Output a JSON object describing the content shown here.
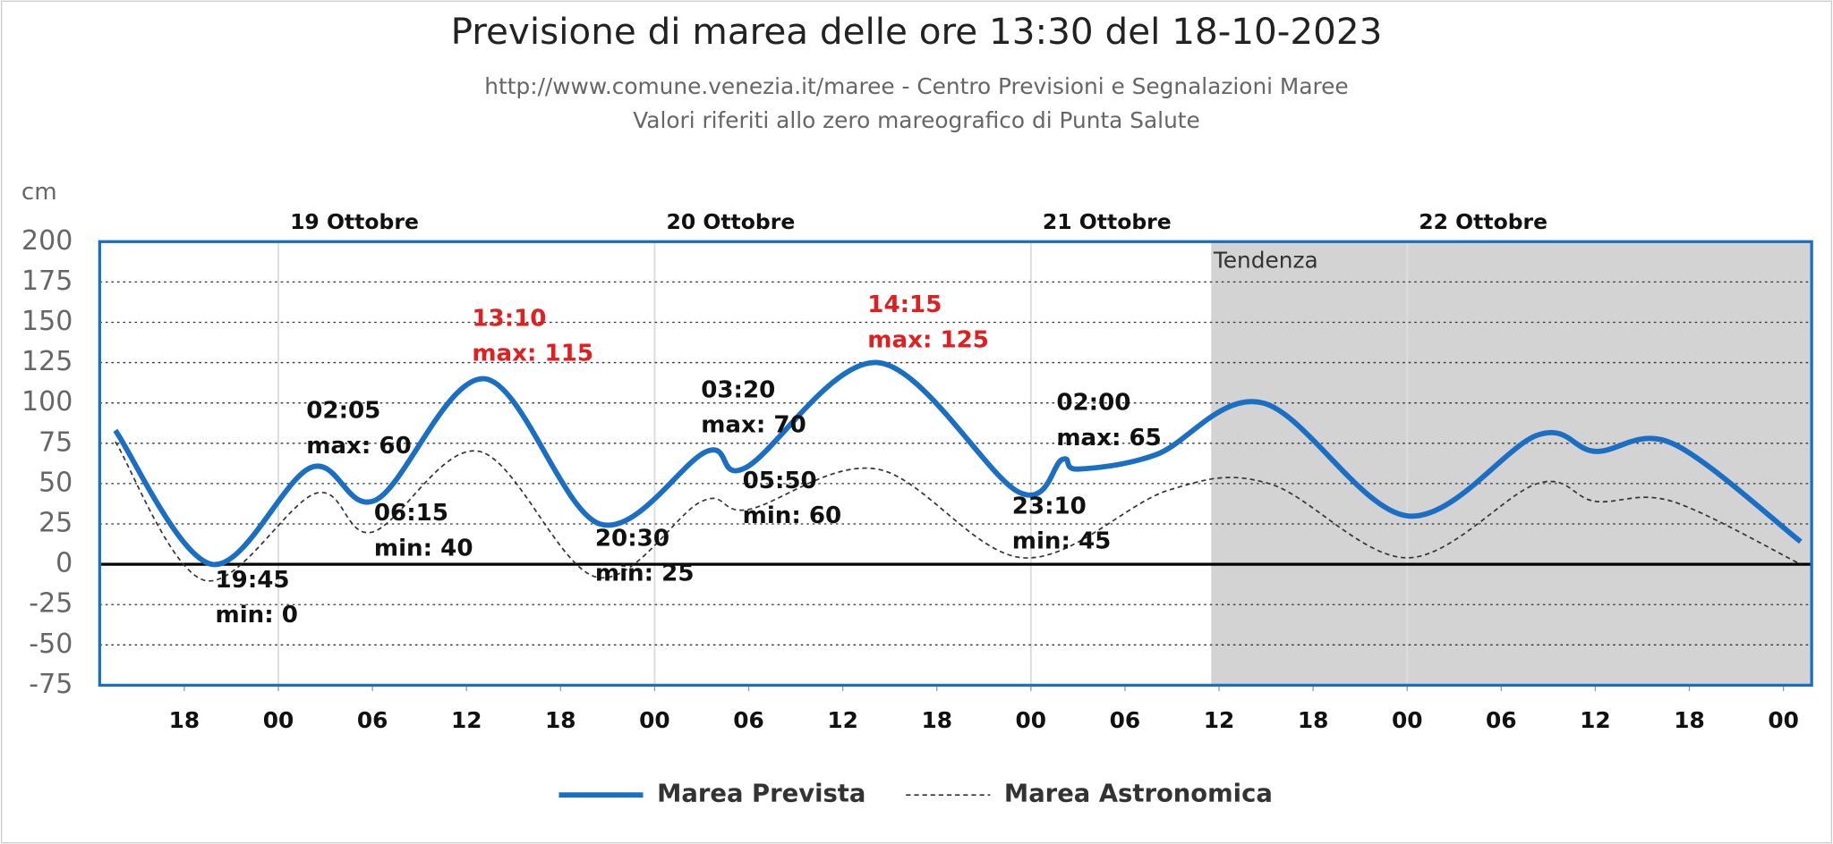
{
  "chart_data": {
    "type": "line",
    "title": "Previsione di marea delle ore 13:30 del 18-10-2023",
    "subtitle": [
      "http://www.comune.venezia.it/maree - Centro Previsioni e Segnalazioni Maree",
      "Valori riferiti allo zero mareografico di Punta Salute"
    ],
    "y_label": "cm",
    "xlim": [
      -11.4,
      97.8
    ],
    "ylim": [
      -75,
      200
    ],
    "yticks": [
      200,
      175,
      150,
      125,
      100,
      75,
      50,
      25,
      0,
      -25,
      -50,
      -75
    ],
    "xticks": [
      {
        "value": -6,
        "label": "18"
      },
      {
        "value": 0,
        "label": "00"
      },
      {
        "value": 6,
        "label": "06"
      },
      {
        "value": 12,
        "label": "12"
      },
      {
        "value": 18,
        "label": "18"
      },
      {
        "value": 24,
        "label": "00"
      },
      {
        "value": 30,
        "label": "06"
      },
      {
        "value": 36,
        "label": "12"
      },
      {
        "value": 42,
        "label": "18"
      },
      {
        "value": 48,
        "label": "00"
      },
      {
        "value": 54,
        "label": "06"
      },
      {
        "value": 60,
        "label": "12"
      },
      {
        "value": 66,
        "label": "18"
      },
      {
        "value": 72,
        "label": "00"
      },
      {
        "value": 78,
        "label": "06"
      },
      {
        "value": 84,
        "label": "12"
      },
      {
        "value": 90,
        "label": "18"
      },
      {
        "value": 96,
        "label": "00"
      }
    ],
    "day_labels": [
      {
        "value": 0,
        "label": "19 Ottobre"
      },
      {
        "value": 24,
        "label": "20 Ottobre"
      },
      {
        "value": 48,
        "label": "21 Ottobre"
      },
      {
        "value": 72,
        "label": "22 Ottobre"
      }
    ],
    "tendenza": {
      "label": "Tendenza",
      "from": 59.5
    },
    "grid": true,
    "series": [
      {
        "name": "Marea Prevista",
        "color": "#1a6fc4",
        "x": [
          -10.4,
          -4.25,
          2.08,
          6.25,
          13.17,
          20.5,
          27.33,
          29.83,
          38.25,
          47.17,
          50,
          51,
          56,
          62.8,
          72,
          80.3,
          84,
          88.9,
          97.1
        ],
        "values": [
          83,
          0,
          60,
          40,
          115,
          25,
          70,
          60,
          125,
          45,
          65,
          59,
          68,
          100,
          30,
          80,
          70,
          75,
          14
        ]
      },
      {
        "name": "Marea Astronomica",
        "color": "#333333",
        "x": [
          -10.4,
          -4.7,
          2.4,
          6,
          12.8,
          20.3,
          27,
          30,
          38.2,
          47.5,
          56.8,
          63.2,
          72,
          80.3,
          84,
          88.9,
          97.1
        ],
        "values": [
          76,
          -10,
          44,
          20,
          70,
          -8,
          39,
          34,
          59,
          4,
          46,
          50,
          4,
          50,
          39,
          39,
          0
        ]
      }
    ],
    "annotations": [
      {
        "lines": [
          "19:45",
          "min: 0"
        ],
        "x": -4.25,
        "value": 0,
        "color": "#111111"
      },
      {
        "lines": [
          "02:05",
          "max: 60"
        ],
        "x": 2.08,
        "value": 60,
        "color": "#111111"
      },
      {
        "lines": [
          "06:15",
          "min: 40"
        ],
        "x": 6.25,
        "value": 40,
        "color": "#111111"
      },
      {
        "lines": [
          "13:10",
          "max: 115"
        ],
        "x": 13.17,
        "value": 115,
        "color": "#e02020"
      },
      {
        "lines": [
          "20:30",
          "min: 25"
        ],
        "x": 20.5,
        "value": 25,
        "color": "#111111"
      },
      {
        "lines": [
          "03:20",
          "max: 70"
        ],
        "x": 27.33,
        "value": 70,
        "color": "#111111"
      },
      {
        "lines": [
          "05:50",
          "min: 60"
        ],
        "x": 29.83,
        "value": 60,
        "color": "#111111"
      },
      {
        "lines": [
          "14:15",
          "max: 125"
        ],
        "x": 38.25,
        "value": 125,
        "color": "#e02020"
      },
      {
        "lines": [
          "23:10",
          "min: 45"
        ],
        "x": 47.17,
        "value": 45,
        "color": "#111111"
      },
      {
        "lines": [
          "02:00",
          "max: 65"
        ],
        "x": 50,
        "value": 65,
        "color": "#111111"
      }
    ]
  }
}
